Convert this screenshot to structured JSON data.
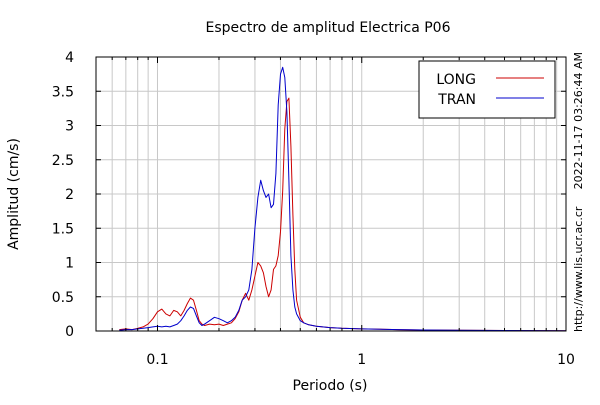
{
  "chart_data": {
    "type": "line",
    "title": "Espectro de amplitud Electrica P06",
    "xlabel": "Periodo (s)",
    "ylabel": "Amplitud (cm/s)",
    "xscale": "log",
    "xlim": [
      0.05,
      10
    ],
    "ylim": [
      0,
      4
    ],
    "grid": true,
    "legend_position": "top-right",
    "x_tick_labels": [
      {
        "value": 0.1,
        "label": "0.1"
      },
      {
        "value": 1,
        "label": "1"
      },
      {
        "value": 10,
        "label": "10"
      }
    ],
    "y_tick_labels": [
      {
        "value": 0,
        "label": "0"
      },
      {
        "value": 0.5,
        "label": "0.5"
      },
      {
        "value": 1,
        "label": "1"
      },
      {
        "value": 1.5,
        "label": "1.5"
      },
      {
        "value": 2,
        "label": "2"
      },
      {
        "value": 2.5,
        "label": "2.5"
      },
      {
        "value": 3,
        "label": "3"
      },
      {
        "value": 3.5,
        "label": "3.5"
      },
      {
        "value": 4,
        "label": "4"
      }
    ],
    "series": [
      {
        "name": "LONG",
        "color": "#cc0000",
        "x": [
          0.065,
          0.07,
          0.075,
          0.08,
          0.085,
          0.09,
          0.095,
          0.1,
          0.105,
          0.11,
          0.115,
          0.12,
          0.125,
          0.13,
          0.135,
          0.14,
          0.145,
          0.15,
          0.155,
          0.16,
          0.165,
          0.17,
          0.18,
          0.19,
          0.2,
          0.21,
          0.22,
          0.23,
          0.24,
          0.25,
          0.26,
          0.27,
          0.28,
          0.29,
          0.3,
          0.31,
          0.32,
          0.33,
          0.34,
          0.35,
          0.36,
          0.37,
          0.38,
          0.39,
          0.4,
          0.41,
          0.42,
          0.43,
          0.44,
          0.45,
          0.46,
          0.47,
          0.48,
          0.5,
          0.52,
          0.55,
          0.6,
          0.7,
          0.8,
          1.0,
          1.5,
          2,
          3,
          5,
          10
        ],
        "y": [
          0.02,
          0.03,
          0.02,
          0.04,
          0.06,
          0.1,
          0.18,
          0.28,
          0.32,
          0.25,
          0.22,
          0.3,
          0.28,
          0.22,
          0.3,
          0.4,
          0.48,
          0.45,
          0.3,
          0.15,
          0.1,
          0.08,
          0.1,
          0.09,
          0.1,
          0.08,
          0.1,
          0.12,
          0.18,
          0.28,
          0.45,
          0.55,
          0.45,
          0.6,
          0.8,
          1.0,
          0.95,
          0.85,
          0.65,
          0.5,
          0.6,
          0.9,
          0.95,
          1.1,
          1.45,
          2.05,
          2.95,
          3.35,
          3.4,
          2.7,
          1.7,
          0.9,
          0.45,
          0.2,
          0.12,
          0.09,
          0.07,
          0.05,
          0.04,
          0.03,
          0.02,
          0.015,
          0.01,
          0.008,
          0.005
        ]
      },
      {
        "name": "TRAN",
        "color": "#0000cc",
        "x": [
          0.065,
          0.07,
          0.075,
          0.08,
          0.085,
          0.09,
          0.095,
          0.1,
          0.105,
          0.11,
          0.115,
          0.12,
          0.125,
          0.13,
          0.135,
          0.14,
          0.145,
          0.15,
          0.155,
          0.16,
          0.165,
          0.17,
          0.18,
          0.19,
          0.2,
          0.21,
          0.22,
          0.23,
          0.24,
          0.25,
          0.26,
          0.27,
          0.28,
          0.29,
          0.3,
          0.31,
          0.32,
          0.33,
          0.34,
          0.35,
          0.36,
          0.37,
          0.38,
          0.39,
          0.4,
          0.41,
          0.42,
          0.43,
          0.44,
          0.45,
          0.46,
          0.47,
          0.48,
          0.5,
          0.52,
          0.55,
          0.6,
          0.7,
          0.8,
          1.0,
          1.5,
          2,
          3,
          5,
          10
        ],
        "y": [
          0.01,
          0.02,
          0.02,
          0.03,
          0.04,
          0.05,
          0.06,
          0.07,
          0.06,
          0.07,
          0.06,
          0.08,
          0.1,
          0.15,
          0.22,
          0.3,
          0.35,
          0.33,
          0.22,
          0.12,
          0.08,
          0.1,
          0.15,
          0.2,
          0.18,
          0.15,
          0.12,
          0.15,
          0.2,
          0.3,
          0.45,
          0.5,
          0.6,
          0.9,
          1.5,
          1.95,
          2.2,
          2.05,
          1.95,
          2.0,
          1.8,
          1.85,
          2.3,
          3.3,
          3.75,
          3.85,
          3.7,
          3.2,
          2.2,
          1.1,
          0.6,
          0.35,
          0.25,
          0.15,
          0.12,
          0.09,
          0.07,
          0.05,
          0.04,
          0.03,
          0.02,
          0.015,
          0.01,
          0.008,
          0.005
        ]
      }
    ]
  },
  "side_text": {
    "timestamp": "2022-11-17 03:26:44 AM",
    "url": "http://www.lis.ucr.ac.cr"
  }
}
